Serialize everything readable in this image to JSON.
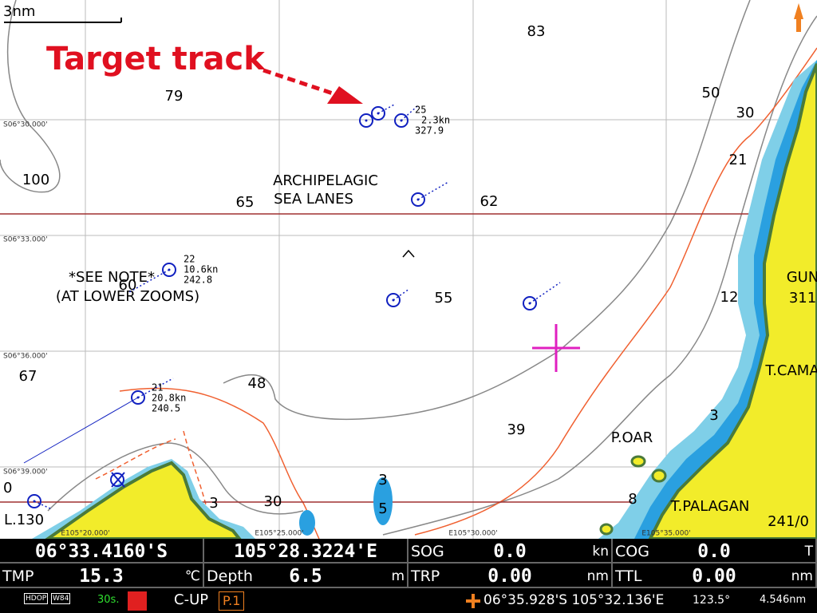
{
  "map": {
    "scale": "3nm",
    "annotation": "Target track",
    "depths": [
      "83",
      "79",
      "50",
      "30",
      "21",
      "100",
      "65",
      "62",
      "60",
      "55",
      "12",
      "67",
      "48",
      "39",
      "3",
      "3",
      "5",
      "3",
      "30",
      "8",
      "0"
    ],
    "labels": [
      "ARCHIPELAGIC",
      "SEA LANES",
      "*SEE NOTE*",
      "(AT LOWER ZOOMS)",
      "GUN",
      "311",
      "T.CAMA",
      "P.OAR",
      "T.PALAGAN",
      "241/0",
      "L.130"
    ],
    "latitude_labels": [
      "S06°30.000'",
      "S06°33.000'",
      "S06°36.000'",
      "S06°39.000'"
    ],
    "longitude_labels": [
      "E105°20.000'",
      "E105°25.000'",
      "E105°30.000'",
      "E105°35.000'"
    ],
    "targets": [
      {
        "id": "25",
        "speed": "2.3kn",
        "course": "327.9"
      },
      {
        "id": "22",
        "speed": "10.6kn",
        "course": "242.8"
      },
      {
        "id": "21",
        "speed": "20.8kn",
        "course": "240.5"
      }
    ]
  },
  "status": {
    "latitude": "06°33.4160'S",
    "longitude": "105°28.3224'E",
    "cells": [
      {
        "label": "SOG",
        "value": "0.0",
        "unit": "kn"
      },
      {
        "label": "COG",
        "value": "0.0",
        "unit": "T"
      },
      {
        "label": "TMP",
        "value": "15.3",
        "unit": "℃"
      },
      {
        "label": "Depth",
        "value": "6.5",
        "unit": "m"
      },
      {
        "label": "TRP",
        "value": "0.00",
        "unit": "nm"
      },
      {
        "label": "TTL",
        "value": "0.00",
        "unit": "nm"
      }
    ],
    "hdop": "HDOP",
    "datum": "W84",
    "interval": "30s.",
    "mode": "C-UP",
    "page": "P.1",
    "cursor_position": "06°35.928'S 105°32.136'E",
    "cursor_bearing": "123.5°",
    "cursor_range": "4.546nm"
  }
}
